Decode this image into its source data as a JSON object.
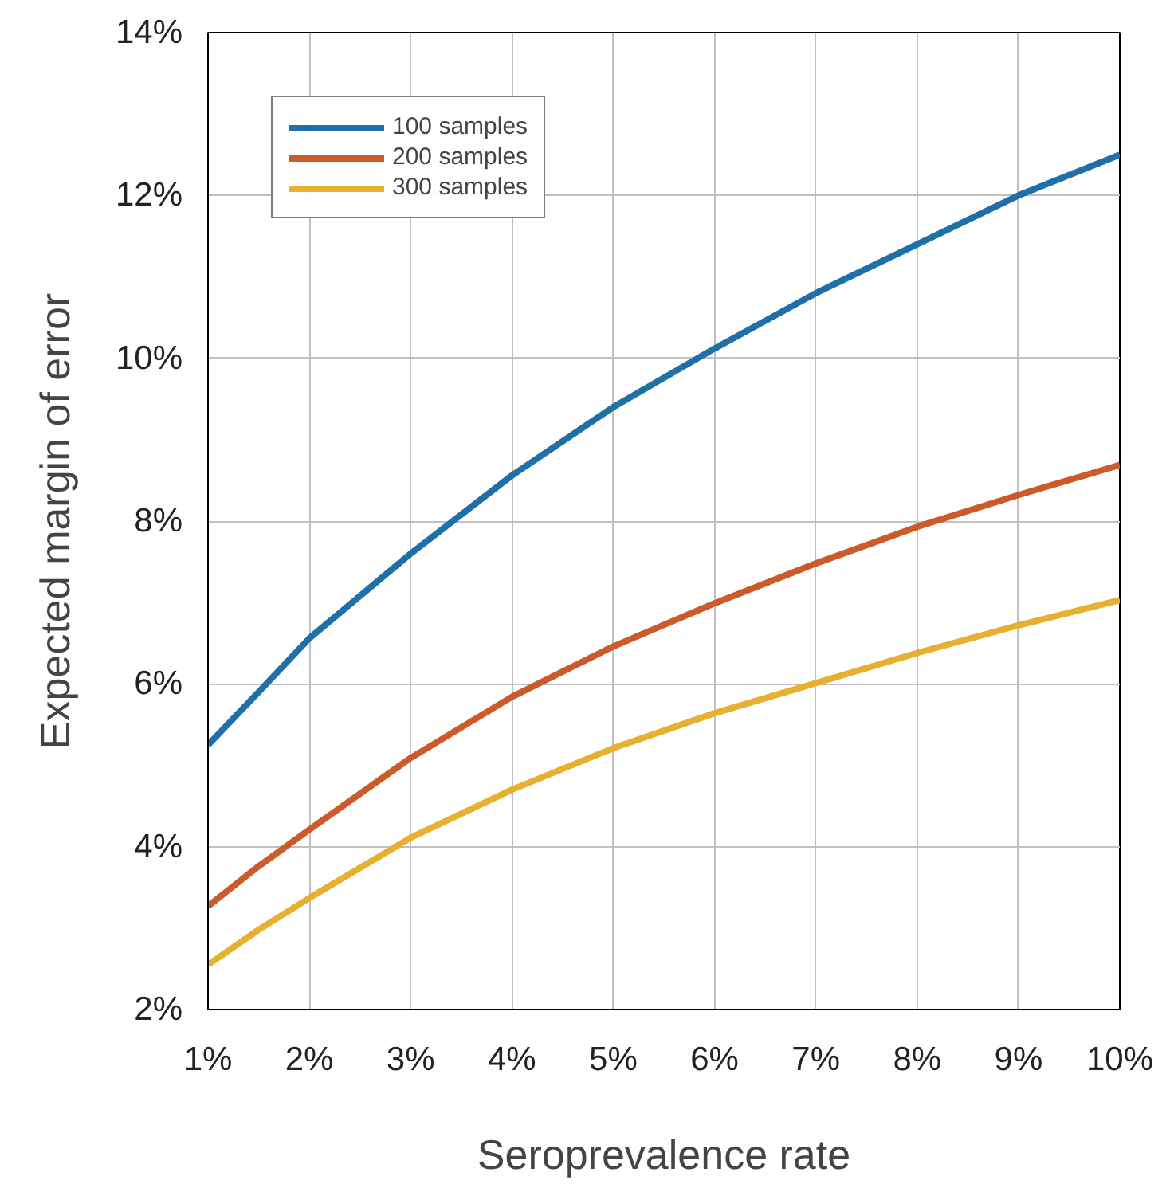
{
  "chart_data": {
    "type": "line",
    "xlabel": "Seroprevalence rate",
    "ylabel": "Expected margin of error",
    "x": [
      1,
      1.5,
      2,
      3,
      4,
      5,
      6,
      7,
      8,
      9,
      10
    ],
    "series": [
      {
        "name": "100 samples",
        "color": "#1f6fa8",
        "values": [
          5.25,
          5.9,
          6.56,
          7.6,
          8.56,
          9.4,
          10.12,
          10.8,
          11.4,
          12.0,
          12.5
        ]
      },
      {
        "name": "200 samples",
        "color": "#cc5a2a",
        "values": [
          3.27,
          3.76,
          4.21,
          5.09,
          5.84,
          6.46,
          6.99,
          7.48,
          7.93,
          8.32,
          8.69
        ]
      },
      {
        "name": "300 samples",
        "color": "#e8b030",
        "values": [
          2.55,
          2.98,
          3.37,
          4.11,
          4.7,
          5.21,
          5.64,
          6.01,
          6.38,
          6.72,
          7.03
        ]
      }
    ],
    "xlim": [
      1,
      10
    ],
    "ylim": [
      2,
      14
    ],
    "xticks": [
      {
        "value": 1,
        "label": "1%"
      },
      {
        "value": 2,
        "label": "2%"
      },
      {
        "value": 3,
        "label": "3%"
      },
      {
        "value": 4,
        "label": "4%"
      },
      {
        "value": 5,
        "label": "5%"
      },
      {
        "value": 6,
        "label": "6%"
      },
      {
        "value": 7,
        "label": "7%"
      },
      {
        "value": 8,
        "label": "8%"
      },
      {
        "value": 9,
        "label": "9%"
      },
      {
        "value": 10,
        "label": "10%"
      }
    ],
    "yticks": [
      {
        "value": 2,
        "label": "2%"
      },
      {
        "value": 4,
        "label": "4%"
      },
      {
        "value": 6,
        "label": "6%"
      },
      {
        "value": 8,
        "label": "8%"
      },
      {
        "value": 10,
        "label": "10%"
      },
      {
        "value": 12,
        "label": "12%"
      },
      {
        "value": 14,
        "label": "14%"
      }
    ],
    "grid": true,
    "legend": "top left",
    "line_style": "solid"
  }
}
